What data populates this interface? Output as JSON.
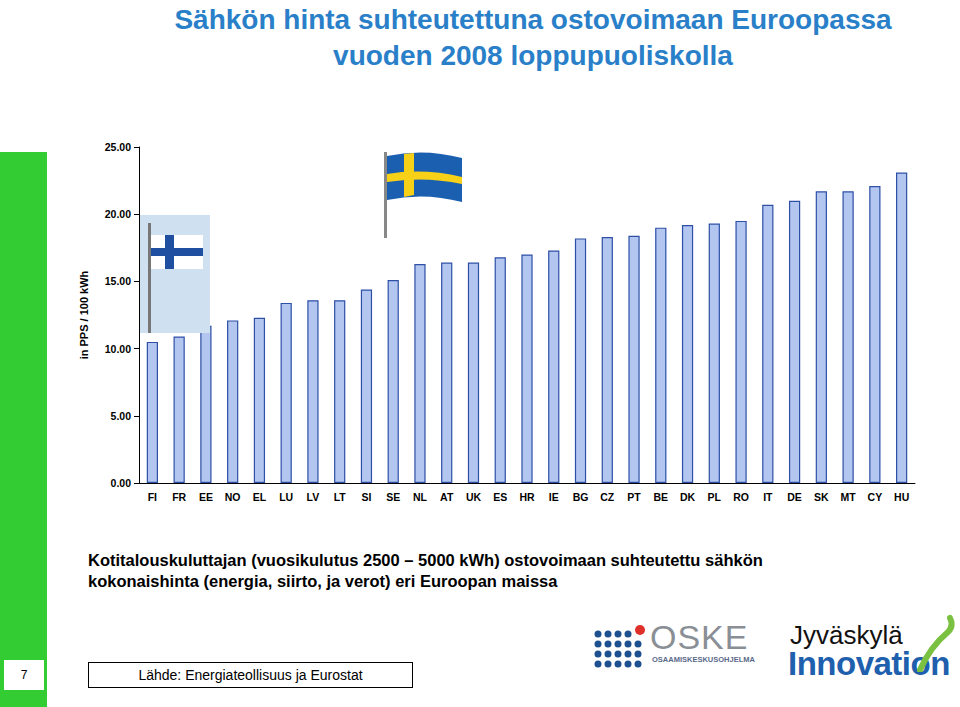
{
  "chart_data": {
    "type": "bar",
    "title": "Sähkön hinta suhteutettuna ostovoimaan Euroopassa\nvuoden 2008 loppupuoliskolla",
    "subtitle": "Kotitalouskuluttajan (vuosikulutus 2500 – 5000 kWh) ostovoimaan suhteutettu sähkön\nkokonaishinta (energia, siirto, ja verot) eri Euroopan maissa",
    "y_label": "in PPS / 100 kWh",
    "categories": [
      "FI",
      "FR",
      "EE",
      "NO",
      "EL",
      "LU",
      "LV",
      "LT",
      "SI",
      "SE",
      "NL",
      "AT",
      "UK",
      "ES",
      "HR",
      "IE",
      "BG",
      "CZ",
      "PT",
      "BE",
      "DK",
      "PL",
      "RO",
      "IT",
      "DE",
      "SK",
      "MT",
      "CY",
      "HU"
    ],
    "values": [
      10.5,
      10.9,
      11.7,
      12.1,
      12.3,
      13.4,
      13.6,
      13.6,
      14.4,
      15.1,
      16.3,
      16.4,
      16.4,
      16.8,
      17.0,
      17.3,
      18.2,
      18.3,
      18.4,
      19.0,
      19.2,
      19.3,
      19.5,
      20.7,
      21.0,
      21.7,
      21.7,
      22.1,
      23.1
    ],
    "color": "#b3c6f0",
    "ylim": [
      0,
      25
    ],
    "yticks": [
      {
        "value": 0,
        "label": "0.00"
      },
      {
        "value": 5,
        "label": "5.00"
      },
      {
        "value": 10,
        "label": "10.00"
      },
      {
        "value": 15,
        "label": "15.00"
      },
      {
        "value": 20,
        "label": "20.00"
      },
      {
        "value": 25,
        "label": "25.00"
      }
    ],
    "grid": false,
    "data_labels": false
  },
  "slide": {
    "page": "7",
    "source": "Lähde: Energiateollisuus ja Eurostat",
    "logos": {
      "oske": "OSKE",
      "oske_sub": "OSAAMISKESKUSOHJELMA",
      "city": "Jyväskylä",
      "brand": "Innovation"
    }
  }
}
